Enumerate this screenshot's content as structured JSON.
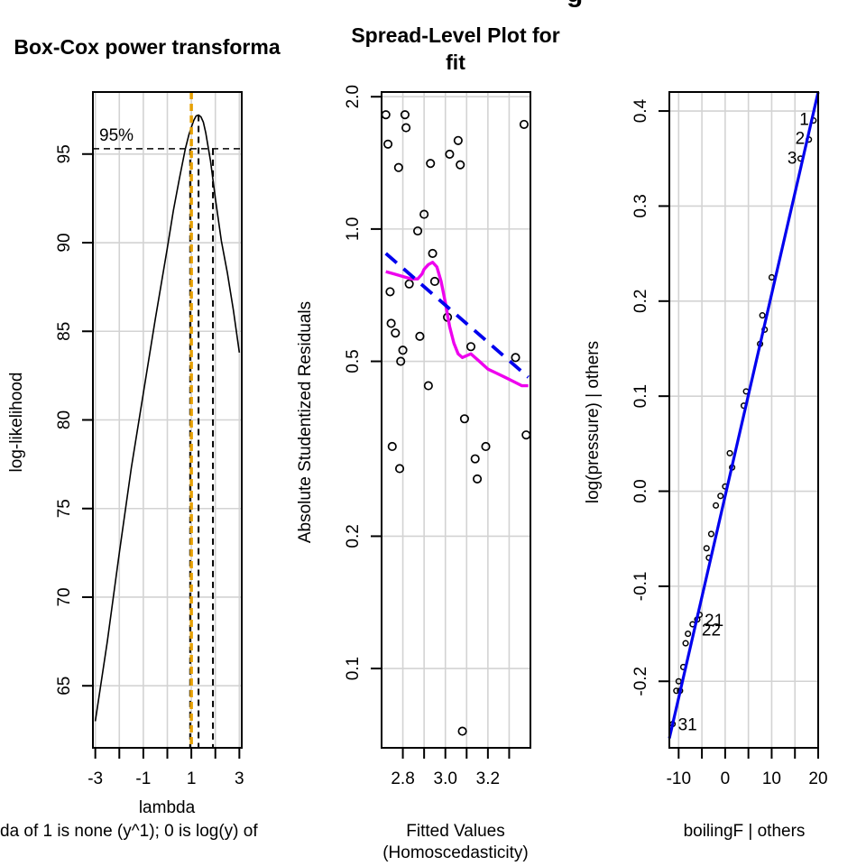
{
  "figure": {
    "top_title_fragment": "g"
  },
  "chart_data": [
    {
      "type": "line",
      "title": "Box-Cox power transforma",
      "xlabel": "lambda",
      "ylabel": "log-likelihood",
      "footnote": "da of 1 is none (y^1); 0 is log(y) of",
      "xlim": [
        -3.1,
        3.1
      ],
      "ylim": [
        61.5,
        98.5
      ],
      "xticks": [
        -3,
        -2,
        -1,
        0,
        1,
        2,
        3
      ],
      "xtick_labels": [
        "-3",
        "",
        "-1",
        "",
        "1",
        "",
        "3"
      ],
      "yticks": [
        65,
        70,
        75,
        80,
        85,
        90,
        95
      ],
      "ytick_labels": [
        "65",
        "70",
        "75",
        "80",
        "85",
        "90",
        "95"
      ],
      "grid": true,
      "curve": {
        "x": [
          -3,
          -2.5,
          -2,
          -1.5,
          -1,
          -0.5,
          0,
          0.25,
          0.5,
          0.75,
          0.9,
          1.1,
          1.2,
          1.3,
          1.4,
          1.5,
          1.6,
          1.8,
          2,
          2.25,
          2.5,
          2.75,
          3
        ],
        "y": [
          63,
          67.5,
          72.5,
          77.3,
          81.5,
          85.7,
          89.7,
          91.8,
          93.6,
          95.3,
          96.1,
          96.9,
          97.15,
          97.2,
          97.1,
          96.8,
          96.2,
          94.6,
          92.5,
          90.1,
          88.3,
          86.2,
          83.8
        ]
      },
      "ci_level_label": "95%",
      "ci_loglik": 95.3,
      "ci_lambda": [
        0.95,
        1.9
      ],
      "lambda_hat": 1.3,
      "reference_lambda": 1,
      "colors": {
        "curve": "#000000",
        "reference": "#e6a000"
      }
    },
    {
      "type": "scatter",
      "title_lines": [
        "Spread-Level Plot for",
        "fit"
      ],
      "xlabel": "Fitted Values",
      "xlabel2": "(Homoscedasticity)",
      "ylabel": "Absolute Studentized Residuals",
      "y_scale": "log",
      "xlim": [
        2.7,
        3.4
      ],
      "ylim": [
        0.066,
        2.05
      ],
      "xticks": [
        2.8,
        3.0,
        3.2
      ],
      "xtick_labels": [
        "2.8",
        "3.0",
        "3.2"
      ],
      "x_minor_ticks": [
        2.9,
        3.1,
        3.3
      ],
      "yticks": [
        0.1,
        0.2,
        0.5,
        1.0,
        2.0
      ],
      "ytick_labels": [
        "0.1",
        "0.2",
        "0.5",
        "1.0",
        "2.0"
      ],
      "grid": true,
      "points": {
        "x": [
          2.72,
          2.73,
          2.74,
          2.745,
          2.75,
          2.765,
          2.78,
          2.785,
          2.79,
          2.8,
          2.81,
          2.815,
          2.83,
          2.87,
          2.88,
          2.9,
          2.92,
          2.93,
          2.94,
          2.95,
          3.01,
          3.02,
          3.06,
          3.07,
          3.08,
          3.09,
          3.12,
          3.14,
          3.15,
          3.19,
          3.33,
          3.37,
          3.38
        ],
        "y": [
          1.82,
          1.56,
          0.72,
          0.61,
          0.32,
          0.58,
          1.38,
          0.285,
          0.5,
          0.53,
          1.82,
          1.7,
          0.75,
          0.99,
          0.57,
          1.08,
          0.44,
          1.41,
          0.88,
          0.76,
          0.63,
          1.48,
          1.59,
          1.4,
          0.072,
          0.37,
          0.54,
          0.3,
          0.27,
          0.32,
          0.51,
          1.73,
          0.34
        ]
      },
      "fit_line": {
        "x": [
          2.72,
          3.39
        ],
        "y": [
          0.88,
          0.46
        ]
      },
      "smooth": {
        "x": [
          2.72,
          2.76,
          2.8,
          2.84,
          2.87,
          2.89,
          2.9,
          2.92,
          2.94,
          2.96,
          2.98,
          3.0,
          3.02,
          3.04,
          3.06,
          3.08,
          3.12,
          3.16,
          3.2,
          3.24,
          3.28,
          3.32,
          3.36,
          3.39
        ],
        "y": [
          0.8,
          0.79,
          0.78,
          0.77,
          0.77,
          0.79,
          0.81,
          0.83,
          0.84,
          0.82,
          0.76,
          0.68,
          0.6,
          0.55,
          0.52,
          0.51,
          0.52,
          0.5,
          0.48,
          0.47,
          0.46,
          0.45,
          0.44,
          0.44
        ]
      },
      "colors": {
        "fit_line": "#0000ee",
        "smooth": "#ee00ee",
        "points": "#000000"
      }
    },
    {
      "type": "scatter",
      "xlabel": "boilingF | others",
      "ylabel": "log(pressure)  | others",
      "xlim": [
        -12,
        20
      ],
      "ylim": [
        -0.27,
        0.42
      ],
      "xticks": [
        -10,
        0,
        10,
        20
      ],
      "xtick_labels": [
        "-10",
        "0",
        "10",
        "20"
      ],
      "x_minor_ticks": [
        -5,
        5,
        15
      ],
      "yticks": [
        -0.2,
        -0.1,
        0.0,
        0.1,
        0.2,
        0.3,
        0.4
      ],
      "ytick_labels": [
        "-0.2",
        "-0.1",
        "0.0",
        "0.1",
        "0.2",
        "0.3",
        "0.4"
      ],
      "grid": true,
      "points": {
        "x": [
          -11.3,
          -10.5,
          -10,
          -9.7,
          -9,
          -8.5,
          -8,
          -7,
          -6,
          -5.5,
          -4,
          -3.5,
          -3,
          -2,
          -1,
          0,
          1,
          1.5,
          4,
          4.5,
          7.5,
          8,
          8.5,
          10,
          16.2,
          18,
          19
        ],
        "y": [
          -0.245,
          -0.21,
          -0.2,
          -0.21,
          -0.185,
          -0.16,
          -0.15,
          -0.14,
          -0.135,
          -0.13,
          -0.06,
          -0.07,
          -0.045,
          -0.015,
          -0.005,
          0.005,
          0.04,
          0.025,
          0.09,
          0.105,
          0.155,
          0.185,
          0.17,
          0.225,
          0.35,
          0.37,
          0.39
        ]
      },
      "fit_line": {
        "x": [
          -12,
          20
        ],
        "y": [
          -0.26,
          0.42
        ]
      },
      "labels": [
        {
          "text": "1",
          "x": 18.8,
          "y": 0.392,
          "side": "left"
        },
        {
          "text": "2",
          "x": 17.9,
          "y": 0.372,
          "side": "left"
        },
        {
          "text": "3",
          "x": 16.2,
          "y": 0.351,
          "side": "left"
        },
        {
          "text": "21",
          "x": -5.6,
          "y": -0.135,
          "side": "right"
        },
        {
          "text": "22",
          "x": -6.2,
          "y": -0.145,
          "side": "right"
        },
        {
          "text": "31",
          "x": -11.3,
          "y": -0.245,
          "side": "right"
        }
      ],
      "colors": {
        "fit_line": "#0000ee",
        "points": "#000000"
      }
    }
  ]
}
